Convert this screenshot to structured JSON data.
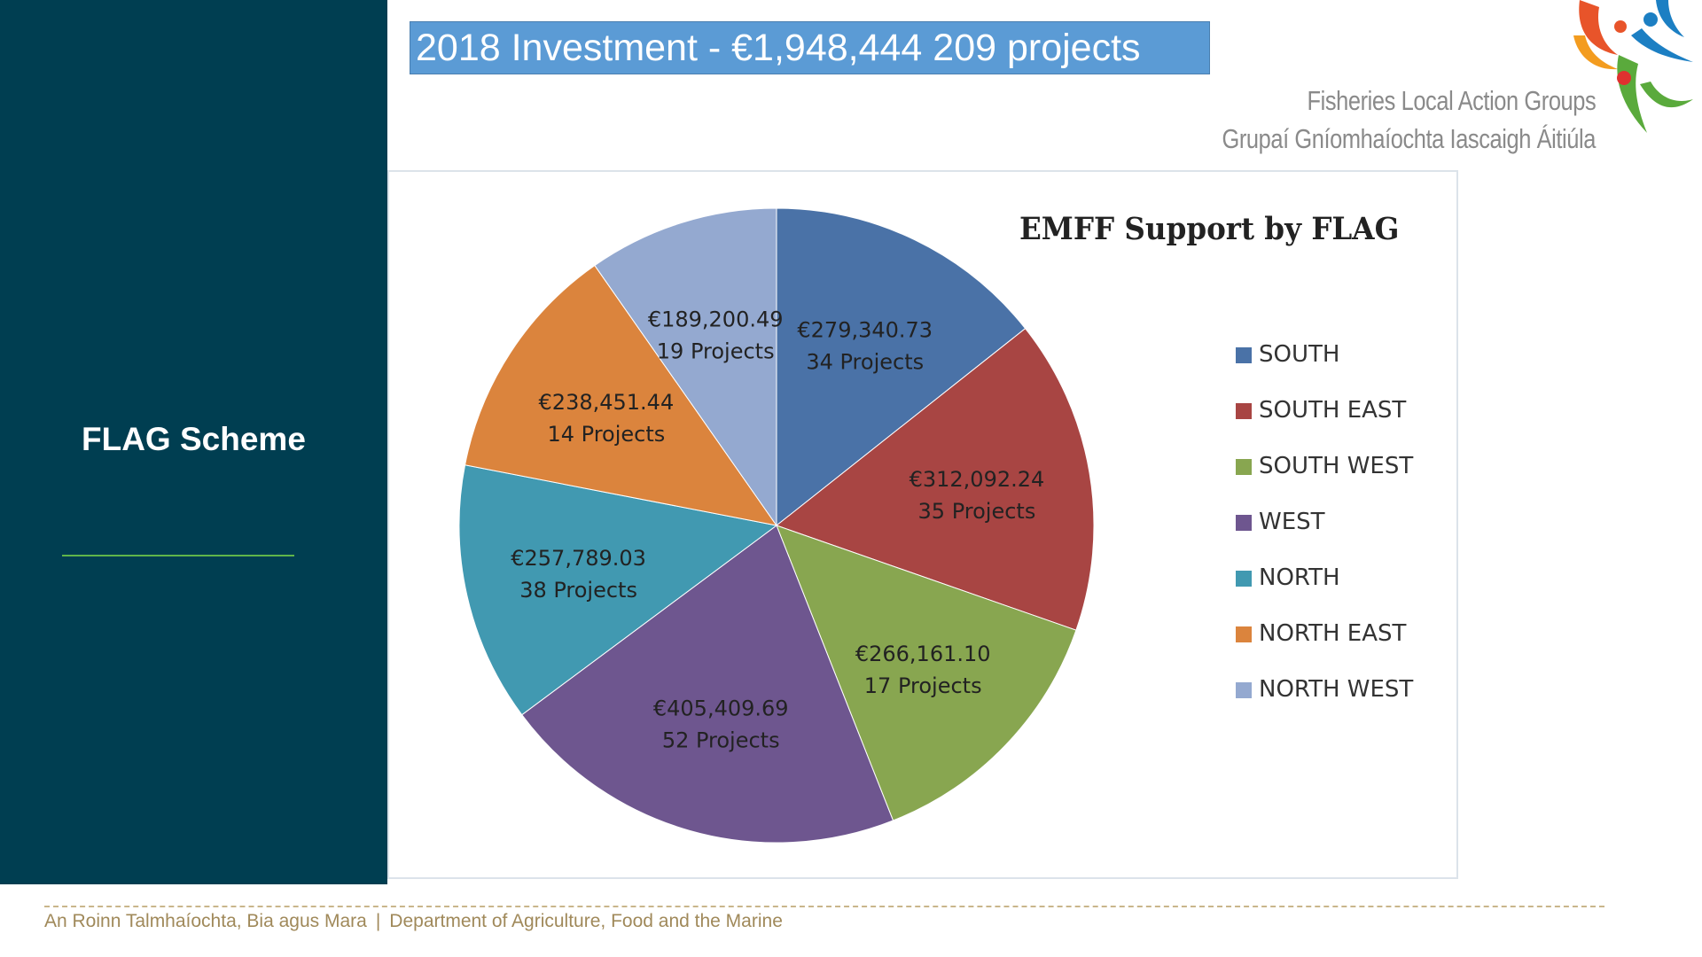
{
  "slide": {
    "banner_title": "2018 Investment - €1,948,444 209 projects",
    "sidebar_title": "FLAG Scheme",
    "logo_line1": "Fisheries Local Action Groups",
    "logo_line2": "Grupaí Gníomhaíochta Iascaigh Áitiúla",
    "footer_left": "An Roinn Talmhaíochta, Bia agus Mara",
    "footer_sep": "|",
    "footer_right": "Department of Agriculture, Food and the Marine"
  },
  "colors": {
    "sidebar": "#003e51",
    "banner": "#5b9bd5",
    "accent_green": "#5fb54a",
    "footer": "#a0895a"
  },
  "chart_data": {
    "type": "pie",
    "title": "EMFF Support by FLAG",
    "legend_position": "right",
    "slices": [
      {
        "name": "SOUTH",
        "value": 279340.73,
        "value_label": "€279,340.73",
        "projects_label": "34 Projects",
        "color": "#4a72a7"
      },
      {
        "name": "SOUTH EAST",
        "value": 312092.24,
        "value_label": "€312,092.24",
        "projects_label": "35 Projects",
        "color": "#a84543"
      },
      {
        "name": "SOUTH WEST",
        "value": 266161.1,
        "value_label": "€266,161.10",
        "projects_label": "17 Projects",
        "color": "#88a650"
      },
      {
        "name": "WEST",
        "value": 405409.69,
        "value_label": "€405,409.69",
        "projects_label": "52 Projects",
        "color": "#6e568f"
      },
      {
        "name": "NORTH",
        "value": 257789.03,
        "value_label": "€257,789.03",
        "projects_label": "38 Projects",
        "color": "#4199b1"
      },
      {
        "name": "NORTH EAST",
        "value": 238451.44,
        "value_label": "€238,451.44",
        "projects_label": "14 Projects",
        "color": "#db843d"
      },
      {
        "name": "NORTH WEST",
        "value": 189200.49,
        "value_label": "€189,200.49",
        "projects_label": "19 Projects",
        "color": "#94a9d0"
      }
    ]
  }
}
